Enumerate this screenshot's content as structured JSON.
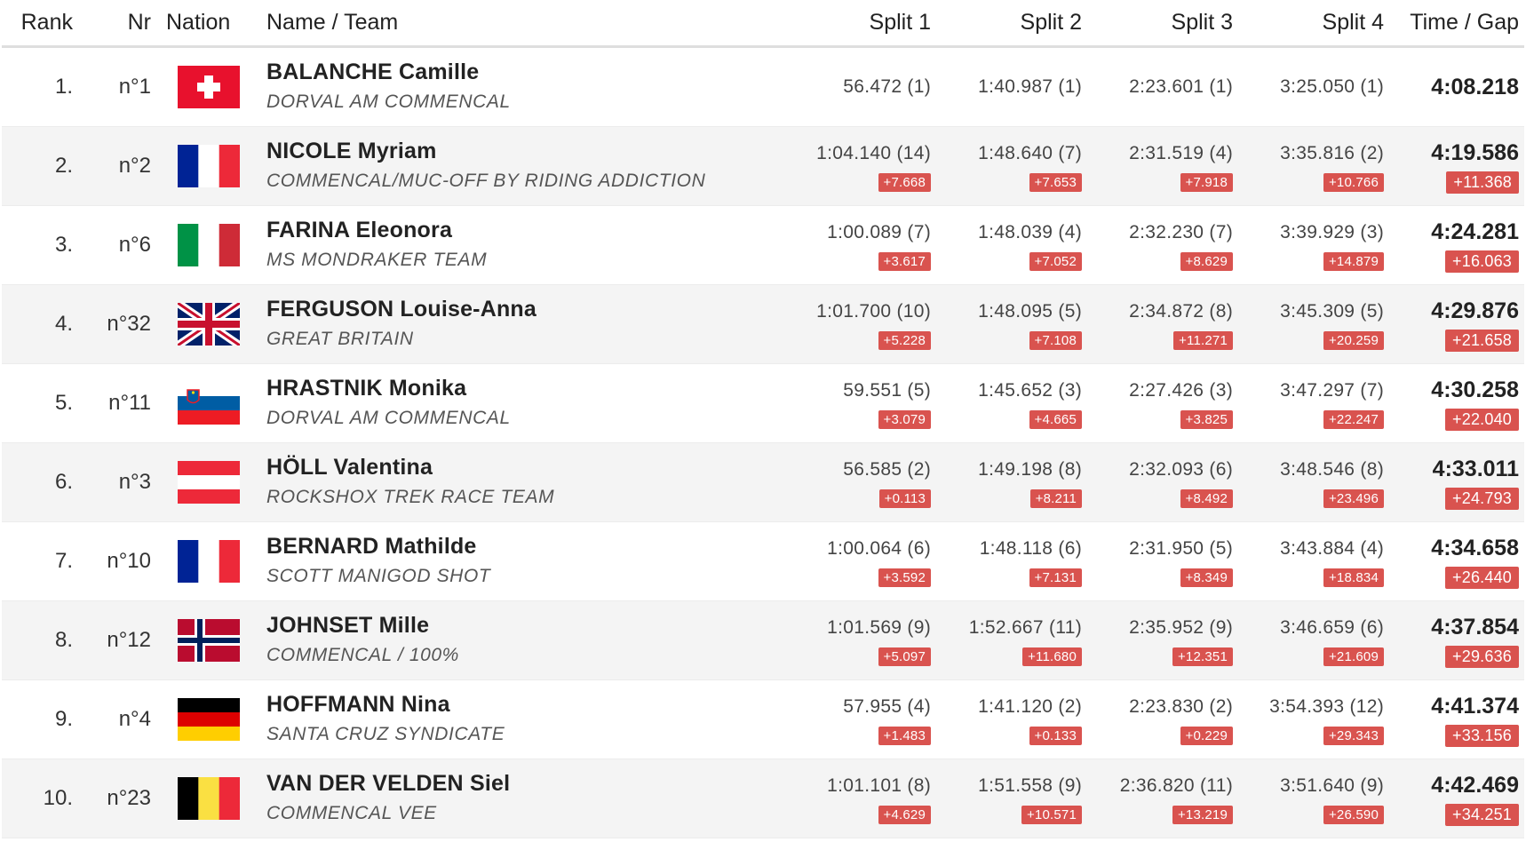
{
  "columns": {
    "rank": "Rank",
    "nr": "Nr",
    "nation": "Nation",
    "name_team": "Name / Team",
    "split1": "Split 1",
    "split2": "Split 2",
    "split3": "Split 3",
    "split4": "Split 4",
    "time_gap": "Time / Gap"
  },
  "rows": [
    {
      "rank": "1.",
      "nr": "n°1",
      "flag": "switzerland-flag",
      "name": "BALANCHE Camille",
      "team": "DORVAL AM COMMENCAL",
      "splits": [
        {
          "value": "56.472 (1)",
          "gap": ""
        },
        {
          "value": "1:40.987 (1)",
          "gap": ""
        },
        {
          "value": "2:23.601 (1)",
          "gap": ""
        },
        {
          "value": "3:25.050 (1)",
          "gap": ""
        }
      ],
      "time": "4:08.218",
      "gap": ""
    },
    {
      "rank": "2.",
      "nr": "n°2",
      "flag": "france-flag",
      "name": "NICOLE Myriam",
      "team": "COMMENCAL/MUC-OFF BY RIDING ADDICTION",
      "splits": [
        {
          "value": "1:04.140 (14)",
          "gap": "+7.668"
        },
        {
          "value": "1:48.640 (7)",
          "gap": "+7.653"
        },
        {
          "value": "2:31.519 (4)",
          "gap": "+7.918"
        },
        {
          "value": "3:35.816 (2)",
          "gap": "+10.766"
        }
      ],
      "time": "4:19.586",
      "gap": "+11.368"
    },
    {
      "rank": "3.",
      "nr": "n°6",
      "flag": "italy-flag",
      "name": "FARINA Eleonora",
      "team": "MS MONDRAKER TEAM",
      "splits": [
        {
          "value": "1:00.089 (7)",
          "gap": "+3.617"
        },
        {
          "value": "1:48.039 (4)",
          "gap": "+7.052"
        },
        {
          "value": "2:32.230 (7)",
          "gap": "+8.629"
        },
        {
          "value": "3:39.929 (3)",
          "gap": "+14.879"
        }
      ],
      "time": "4:24.281",
      "gap": "+16.063"
    },
    {
      "rank": "4.",
      "nr": "n°32",
      "flag": "great-britain-flag",
      "name": "FERGUSON Louise-Anna",
      "team": "GREAT BRITAIN",
      "splits": [
        {
          "value": "1:01.700 (10)",
          "gap": "+5.228"
        },
        {
          "value": "1:48.095 (5)",
          "gap": "+7.108"
        },
        {
          "value": "2:34.872 (8)",
          "gap": "+11.271"
        },
        {
          "value": "3:45.309 (5)",
          "gap": "+20.259"
        }
      ],
      "time": "4:29.876",
      "gap": "+21.658"
    },
    {
      "rank": "5.",
      "nr": "n°11",
      "flag": "slovenia-flag",
      "name": "HRASTNIK Monika",
      "team": "DORVAL AM COMMENCAL",
      "splits": [
        {
          "value": "59.551 (5)",
          "gap": "+3.079"
        },
        {
          "value": "1:45.652 (3)",
          "gap": "+4.665"
        },
        {
          "value": "2:27.426 (3)",
          "gap": "+3.825"
        },
        {
          "value": "3:47.297 (7)",
          "gap": "+22.247"
        }
      ],
      "time": "4:30.258",
      "gap": "+22.040"
    },
    {
      "rank": "6.",
      "nr": "n°3",
      "flag": "austria-flag",
      "name": "HÖLL Valentina",
      "team": "ROCKSHOX TREK RACE TEAM",
      "splits": [
        {
          "value": "56.585 (2)",
          "gap": "+0.113"
        },
        {
          "value": "1:49.198 (8)",
          "gap": "+8.211"
        },
        {
          "value": "2:32.093 (6)",
          "gap": "+8.492"
        },
        {
          "value": "3:48.546 (8)",
          "gap": "+23.496"
        }
      ],
      "time": "4:33.011",
      "gap": "+24.793"
    },
    {
      "rank": "7.",
      "nr": "n°10",
      "flag": "france-flag",
      "name": "BERNARD Mathilde",
      "team": "SCOTT MANIGOD SHOT",
      "splits": [
        {
          "value": "1:00.064 (6)",
          "gap": "+3.592"
        },
        {
          "value": "1:48.118 (6)",
          "gap": "+7.131"
        },
        {
          "value": "2:31.950 (5)",
          "gap": "+8.349"
        },
        {
          "value": "3:43.884 (4)",
          "gap": "+18.834"
        }
      ],
      "time": "4:34.658",
      "gap": "+26.440"
    },
    {
      "rank": "8.",
      "nr": "n°12",
      "flag": "norway-flag",
      "name": "JOHNSET Mille",
      "team": "COMMENCAL / 100%",
      "splits": [
        {
          "value": "1:01.569 (9)",
          "gap": "+5.097"
        },
        {
          "value": "1:52.667 (11)",
          "gap": "+11.680"
        },
        {
          "value": "2:35.952 (9)",
          "gap": "+12.351"
        },
        {
          "value": "3:46.659 (6)",
          "gap": "+21.609"
        }
      ],
      "time": "4:37.854",
      "gap": "+29.636"
    },
    {
      "rank": "9.",
      "nr": "n°4",
      "flag": "germany-flag",
      "name": "HOFFMANN Nina",
      "team": "SANTA CRUZ SYNDICATE",
      "splits": [
        {
          "value": "57.955 (4)",
          "gap": "+1.483"
        },
        {
          "value": "1:41.120 (2)",
          "gap": "+0.133"
        },
        {
          "value": "2:23.830 (2)",
          "gap": "+0.229"
        },
        {
          "value": "3:54.393 (12)",
          "gap": "+29.343"
        }
      ],
      "time": "4:41.374",
      "gap": "+33.156"
    },
    {
      "rank": "10.",
      "nr": "n°23",
      "flag": "belgium-flag",
      "name": "VAN DER VELDEN Siel",
      "team": "COMMENCAL VEE",
      "splits": [
        {
          "value": "1:01.101 (8)",
          "gap": "+4.629"
        },
        {
          "value": "1:51.558 (9)",
          "gap": "+10.571"
        },
        {
          "value": "2:36.820 (11)",
          "gap": "+13.219"
        },
        {
          "value": "3:51.640 (9)",
          "gap": "+26.590"
        }
      ],
      "time": "4:42.469",
      "gap": "+34.251"
    }
  ],
  "colors": {
    "gap_badge": "#d9534f",
    "alt_row": "#f4f4f4",
    "header_rule": "#dedede"
  }
}
